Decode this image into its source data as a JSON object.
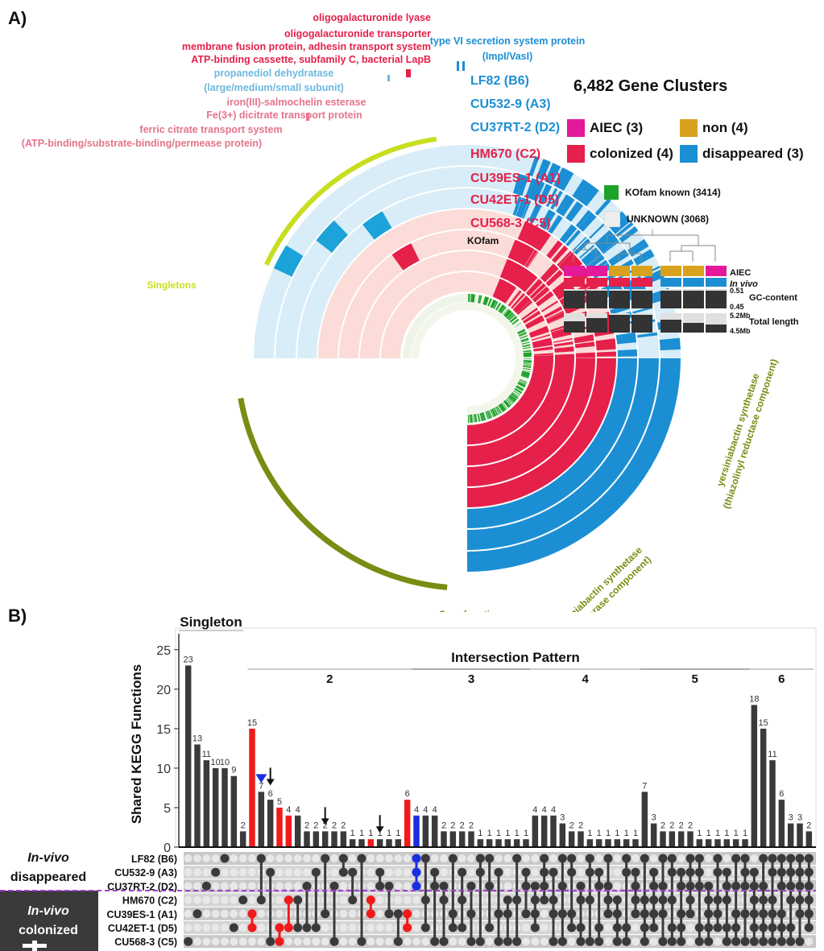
{
  "panel_a": {
    "label": "A)",
    "legend_title": "6,482 Gene Clusters",
    "groups": [
      {
        "name": "AIEC (3)",
        "color": "#e3199a"
      },
      {
        "name": "non (4)",
        "color": "#d9a21e"
      },
      {
        "name": "colonized (4)",
        "color": "#e5204a"
      },
      {
        "name": "disappeared (3)",
        "color": "#1c8fd4"
      }
    ],
    "kofam_legend": [
      {
        "name": "KOfam known (3414)",
        "color": "#1fa22a"
      },
      {
        "name": "UNKNOWN (3068)",
        "color": "#eeeeee"
      }
    ],
    "strains_blue": [
      "LF82 (B6)",
      "CU532-9 (A3)",
      "CU37RT-2 (D2)"
    ],
    "strains_red": [
      "HM670 (C2)",
      "CU39ES-1 (A1)",
      "CU42ET-1 (D5)",
      "CU568-3 (C5)"
    ],
    "kofam_ring_label": "KOfam",
    "annotations_red": [
      "oligogalacturonide lyase",
      "oligogalacturonide transporter",
      "membrane fusion protein, adhesin transport system",
      "ATP-binding cassette, subfamily C, bacterial LapB"
    ],
    "annotations_lightblue": [
      "propanediol dehydratase",
      "(large/medium/small subunit)"
    ],
    "annotations_pink": [
      "iron(III)-salmochelin esterase",
      "Fe(3+) dicitrate transport protein",
      "ferric citrate transport system",
      "(ATP-binding/substrate-binding/permease protein)"
    ],
    "annotation_t6ss": [
      "type VI secretion system protein",
      "(ImpI/VasI)"
    ],
    "arc_singletons": "Singletons",
    "arc_core": "Core functions",
    "arc_yersin_thio": [
      "yersiniabactin synthetase",
      "(thioesterase component)"
    ],
    "arc_yersin_red": [
      "yersiniabactin synthetase",
      "(thiazolinyl reductase component)"
    ],
    "meta_rows": [
      "AIEC",
      "In vivo",
      "GC-content",
      "Total length"
    ],
    "meta_scale": [
      "0.51",
      "0.45",
      "5.2Mb",
      "4.5Mb"
    ]
  },
  "panel_b": {
    "label": "B)",
    "singleton_label": "Singleton",
    "intersection_label": "Intersection Pattern",
    "degree_labels": [
      "2",
      "3",
      "4",
      "5",
      "6"
    ],
    "left_label_top": [
      "In-vivo",
      "disappeared"
    ],
    "left_label_bottom": [
      "In-vivo",
      "colonized"
    ]
  },
  "chart_data": {
    "type": "bar",
    "title": "",
    "ylabel": "Shared KEGG Functions",
    "ylim": [
      0,
      26
    ],
    "yticks": [
      0,
      5,
      10,
      15,
      20,
      25
    ],
    "sets": [
      "LF82 (B6)",
      "CU532-9 (A3)",
      "CU37RT-2 (D2)",
      "HM670 (C2)",
      "CU39ES-1 (A1)",
      "CU42ET-1 (D5)",
      "CU568-3 (C5)"
    ],
    "values": [
      23,
      13,
      11,
      10,
      10,
      9,
      2,
      15,
      7,
      6,
      5,
      4,
      4,
      2,
      2,
      2,
      2,
      2,
      1,
      1,
      1,
      1,
      1,
      1,
      6,
      4,
      4,
      4,
      2,
      2,
      2,
      2,
      1,
      1,
      1,
      1,
      1,
      1,
      4,
      4,
      4,
      3,
      2,
      2,
      1,
      1,
      1,
      1,
      1,
      1,
      7,
      3,
      2,
      2,
      2,
      2,
      1,
      1,
      1,
      1,
      1,
      1,
      18,
      15,
      11,
      6,
      3,
      3,
      2
    ],
    "highlight_red": [
      7,
      10,
      11,
      20,
      24
    ],
    "highlight_blue": [
      25
    ],
    "memberships": [
      [
        6
      ],
      [
        4
      ],
      [
        2
      ],
      [
        1
      ],
      [
        0
      ],
      [
        5
      ],
      [
        3
      ],
      [
        4,
        5
      ],
      [
        0,
        3
      ],
      [
        1,
        6
      ],
      [
        5,
        6
      ],
      [
        3,
        5
      ],
      [
        3,
        5
      ],
      [
        2,
        5
      ],
      [
        1,
        5
      ],
      [
        0,
        4
      ],
      [
        2,
        6
      ],
      [
        0,
        1
      ],
      [
        1,
        3
      ],
      [
        0,
        6
      ],
      [
        3,
        4
      ],
      [
        1,
        2
      ],
      [
        2,
        4
      ],
      [
        4,
        6
      ],
      [
        4,
        5
      ],
      [
        0,
        1,
        2
      ],
      [
        0,
        3,
        5
      ],
      [
        1,
        2,
        6
      ],
      [
        2,
        3,
        6
      ],
      [
        0,
        4,
        5
      ],
      [
        1,
        3,
        5
      ],
      [
        2,
        4,
        6
      ],
      [
        0,
        1,
        6
      ],
      [
        0,
        2,
        5
      ],
      [
        1,
        4,
        6
      ],
      [
        3,
        4,
        6
      ],
      [
        0,
        3,
        6
      ],
      [
        1,
        2,
        4
      ],
      [
        2,
        3,
        4,
        5
      ],
      [
        0,
        1,
        2,
        3
      ],
      [
        1,
        3,
        4,
        6
      ],
      [
        0,
        2,
        4,
        6
      ],
      [
        0,
        1,
        4,
        5
      ],
      [
        2,
        3,
        5,
        6
      ],
      [
        0,
        1,
        3,
        6
      ],
      [
        1,
        2,
        5,
        6
      ],
      [
        0,
        2,
        3,
        4
      ],
      [
        3,
        4,
        5,
        6
      ],
      [
        0,
        1,
        5,
        6
      ],
      [
        1,
        2,
        3,
        4
      ],
      [
        0,
        3,
        4,
        5,
        6
      ],
      [
        1,
        2,
        3,
        4,
        5
      ],
      [
        0,
        2,
        3,
        4,
        6
      ],
      [
        0,
        1,
        3,
        5,
        6
      ],
      [
        1,
        2,
        4,
        5,
        6
      ],
      [
        0,
        1,
        2,
        3,
        4
      ],
      [
        0,
        1,
        2,
        5,
        6
      ],
      [
        2,
        3,
        4,
        5,
        6
      ],
      [
        0,
        1,
        3,
        4,
        5
      ],
      [
        1,
        2,
        3,
        5,
        6
      ],
      [
        0,
        2,
        4,
        5,
        6
      ],
      [
        0,
        1,
        2,
        4,
        6
      ],
      [
        1,
        2,
        3,
        4,
        5,
        6
      ],
      [
        0,
        2,
        3,
        4,
        5,
        6
      ],
      [
        0,
        1,
        3,
        4,
        5,
        6
      ],
      [
        0,
        1,
        2,
        4,
        5,
        6
      ],
      [
        0,
        1,
        2,
        3,
        5,
        6
      ],
      [
        0,
        1,
        2,
        3,
        4,
        6
      ],
      [
        0,
        1,
        2,
        3,
        4,
        5
      ]
    ]
  }
}
